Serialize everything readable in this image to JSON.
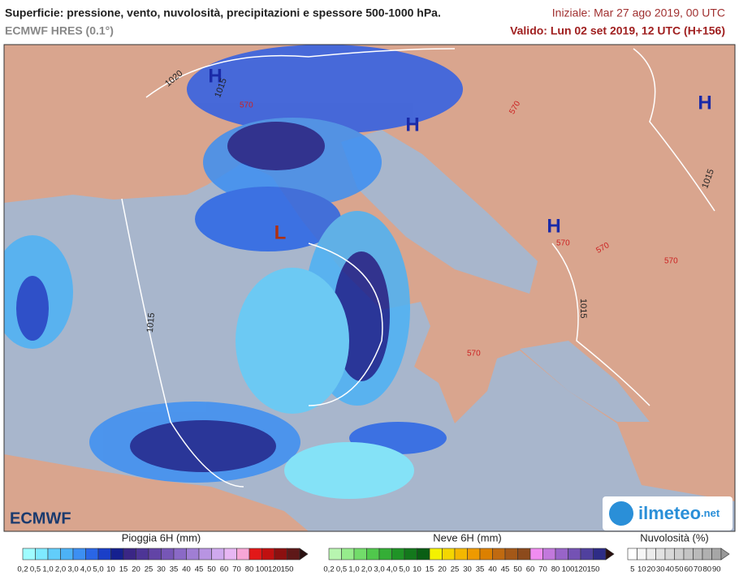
{
  "header": {
    "title": "Superficie: pressione, vento, nuvolosità, precipitazioni e spessore 500-1000 hPa.",
    "model": "ECMWF HRES (0.1°)",
    "initial": "Iniziale: Mar 27 ago 2019, 00 UTC",
    "valid": "Valido: Lun 02 set 2019, 12 UTC (H+156)"
  },
  "map_labels": {
    "highs": [
      "H",
      "H",
      "H",
      "H"
    ],
    "lows": [
      "L"
    ],
    "isobars": [
      "1020",
      "1015",
      "1015",
      "1015",
      "1015"
    ],
    "thickness": [
      "570",
      "570",
      "570",
      "570",
      "570",
      "570"
    ]
  },
  "logos": {
    "left": "ECMWF",
    "right": "ilmeteo",
    "right_suffix": ".net"
  },
  "legends": [
    {
      "title": "Pioggia 6H (mm)",
      "labels": [
        "0,2",
        "0,5",
        "1,0",
        "2,0",
        "3,0",
        "4,0",
        "5,0",
        "10",
        "15",
        "20",
        "25",
        "30",
        "35",
        "40",
        "45",
        "50",
        "60",
        "70",
        "80",
        "100",
        "120",
        "150"
      ],
      "colors": [
        "#9ffcff",
        "#7eeaff",
        "#62cdfa",
        "#4cb2f6",
        "#3c8ff2",
        "#2a66e6",
        "#1a3fc8",
        "#15208f",
        "#3a2685",
        "#4d3596",
        "#6244a6",
        "#7656b6",
        "#8a69c6",
        "#a07ed4",
        "#b894e2",
        "#cfa9ee",
        "#e7b6f3",
        "#f7a6d6",
        "#e21818",
        "#c01010",
        "#8c1010",
        "#5e1818"
      ]
    },
    {
      "title": "Neve 6H (mm)",
      "labels": [
        "0,2",
        "0,5",
        "1,0",
        "2,0",
        "3,0",
        "4,0",
        "5,0",
        "10",
        "15",
        "20",
        "25",
        "30",
        "35",
        "40",
        "45",
        "50",
        "60",
        "70",
        "80",
        "100",
        "120",
        "150"
      ],
      "colors": [
        "#b8f5b0",
        "#96ec8c",
        "#72dc6a",
        "#50c84c",
        "#34ae36",
        "#1f9326",
        "#13781c",
        "#0a5e14",
        "#f4f200",
        "#f4d600",
        "#f4b800",
        "#ee9a00",
        "#dc8000",
        "#c06a10",
        "#a45818",
        "#8c4a1c",
        "#f08cf0",
        "#c278dc",
        "#9864c8",
        "#7452b4",
        "#50409e",
        "#2e2c86"
      ]
    },
    {
      "title": "Nuvolosità (%)",
      "labels": [
        "5",
        "10",
        "20",
        "30",
        "40",
        "50",
        "60",
        "70",
        "80",
        "90"
      ],
      "colors": [
        "#ffffff",
        "#f6f6f6",
        "#ececec",
        "#e2e2e2",
        "#d8d8d8",
        "#cecece",
        "#c4c4c4",
        "#bababa",
        "#b0b0b0",
        "#a6a6a6"
      ]
    }
  ]
}
